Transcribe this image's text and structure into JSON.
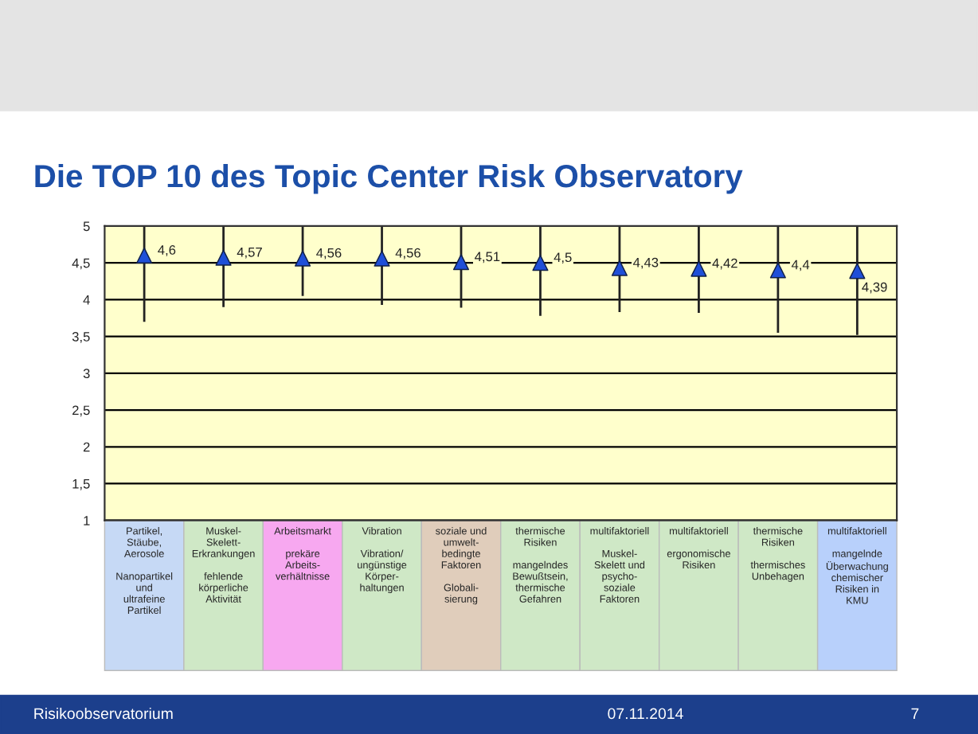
{
  "chart_data": {
    "type": "scatter",
    "title": "Die TOP 10 des Topic Center Risk Observatory",
    "categories": [
      "Partikel,\nStäube,\nAerosole\n\nNanopartikel\nund\nultrafeine\nPartikel",
      "Muskel-\nSkelett-\nErkrankungen\n\nfehlende\nkörperliche\nAktivität",
      "Arbeitsmarkt\n\nprekäre\nArbeits-\nverhältnisse",
      "Vibration\n\nVibration/\nungünstige\nKörper-\nhaltungen",
      "soziale und\numwelt-\nbedingte\nFaktoren\n\nGlobali-\nsierung",
      "thermische\nRisiken\n\nmangelndes\nBewußtsein,\nthermische\nGefahren",
      "multifaktoriell\n\nMuskel-\nSkelett und\npsycho-\nsoziale\nFaktoren",
      "multifaktoriell\n\nergonomische\nRisiken",
      "thermische\nRisiken\n\nthermisches\nUnbehagen",
      "multifaktoriell\n\nmangelnde\nÜberwachung\nchemischer\nRisiken in\nKMU"
    ],
    "values": [
      4.6,
      4.57,
      4.56,
      4.56,
      4.51,
      4.5,
      4.43,
      4.42,
      4.4,
      4.39
    ],
    "value_labels": [
      "4,6",
      "4,57",
      "4,56",
      "4,56",
      "4,51",
      "4,5",
      "4,43",
      "4,42",
      "4,4",
      "4,39"
    ],
    "errors": [
      [
        3.7,
        5
      ],
      [
        3.9,
        5
      ],
      [
        4.05,
        5
      ],
      [
        3.93,
        5
      ],
      [
        3.89,
        5
      ],
      [
        3.78,
        5
      ],
      [
        3.83,
        5
      ],
      [
        3.82,
        5
      ],
      [
        3.55,
        5
      ],
      [
        3.52,
        5
      ]
    ],
    "color": "#1f4fd8",
    "marker": "triangle",
    "ylim": [
      1,
      5
    ],
    "yticks": [
      1,
      {
        "value": 1.5,
        "label": "1,5"
      },
      2,
      {
        "value": 2.5,
        "label": "2,5"
      },
      3,
      {
        "value": 3.5,
        "label": "3,5"
      },
      4,
      {
        "value": 4.5,
        "label": "4,5"
      },
      5
    ],
    "grid": "y",
    "legend": false,
    "annotations": [
      "Risikoobservatorium",
      "07.11.2014",
      "7"
    ]
  }
}
